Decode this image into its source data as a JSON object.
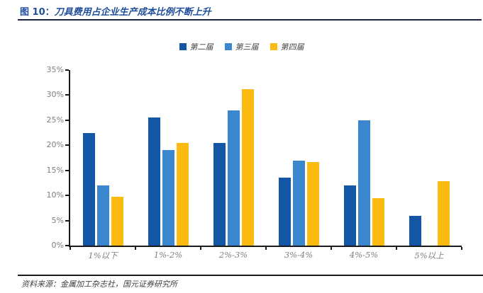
{
  "header": {
    "figure_label": "图 10：",
    "title": "刀具费用占企业生产成本比例不断上升"
  },
  "footer": {
    "source_label": "资料来源：",
    "source_text": "金属加工杂志社，国元证券研究所"
  },
  "colors": {
    "title_blue": "#1f4e9b",
    "axis": "#1a1a1a",
    "tick_label_gray": "#7f7f7f",
    "series_dark_blue": "#1256a5",
    "series_medium_blue": "#3b87cf",
    "series_yellow": "#fbba12"
  },
  "chart_data": {
    "type": "bar",
    "title": "刀具费用占企业生产成本比例不断上升",
    "categories": [
      "1%以下",
      "1%-2%",
      "2%-3%",
      "3%-4%",
      "4%-5%",
      "5%以上"
    ],
    "series": [
      {
        "name": "第二届",
        "color": "#1256a5",
        "values": [
          22.5,
          25.5,
          20.5,
          13.6,
          12,
          6
        ]
      },
      {
        "name": "第三届",
        "color": "#3b87cf",
        "values": [
          12,
          19,
          27,
          17,
          25,
          null
        ]
      },
      {
        "name": "第四届",
        "color": "#fbba12",
        "values": [
          9.7,
          20.5,
          31.2,
          16.6,
          9.5,
          12.8
        ]
      }
    ],
    "ylabel": "",
    "xlabel": "",
    "ylim": [
      0,
      35
    ],
    "ytick_step": 5,
    "ytick_labels": [
      "0%",
      "5%",
      "10%",
      "15%",
      "20%",
      "25%",
      "30%",
      "35%"
    ],
    "value_unit": "%",
    "grid": false,
    "legend_position": "top-center"
  }
}
